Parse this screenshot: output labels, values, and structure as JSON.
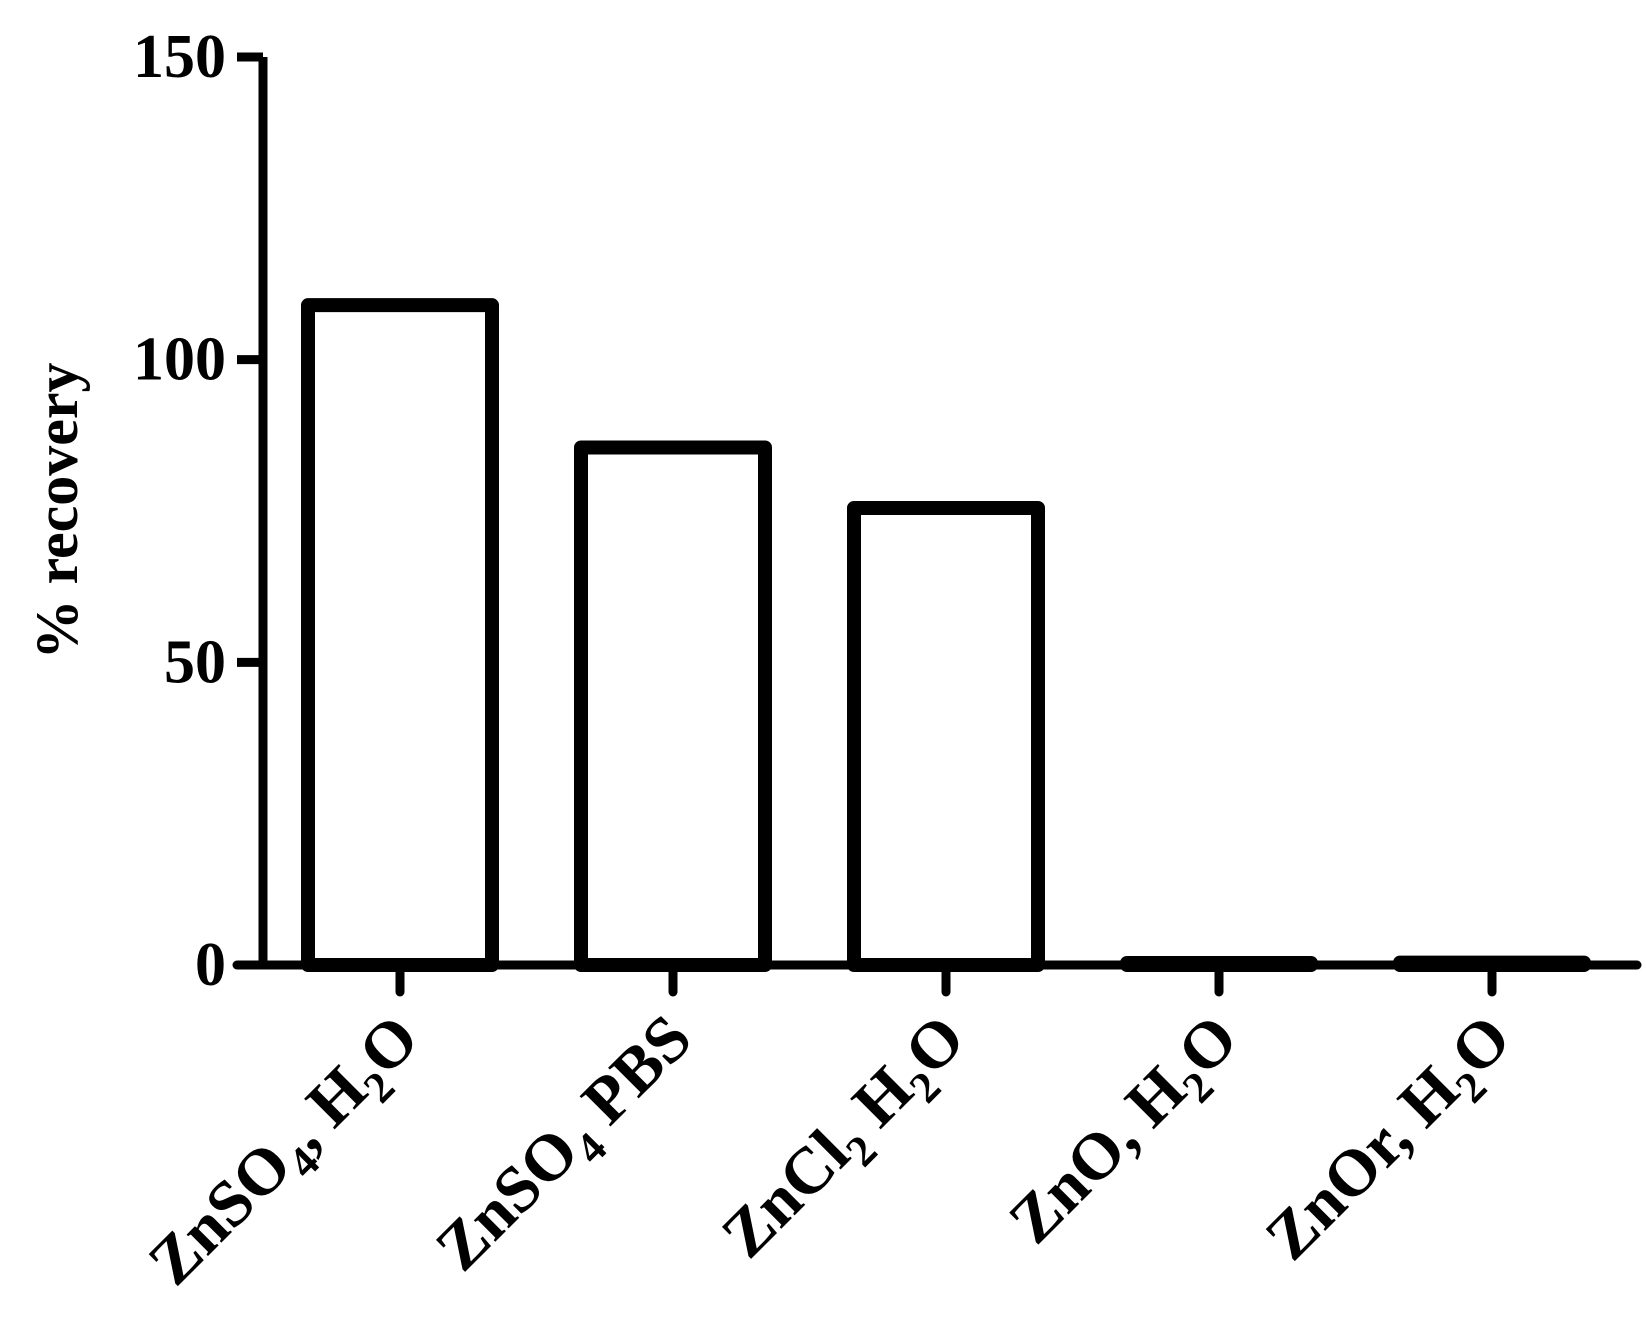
{
  "chart_data": {
    "type": "bar",
    "title": "",
    "xlabel": "",
    "ylabel": "% recovery",
    "ylim": [
      0,
      150
    ],
    "yticks": [
      0,
      50,
      100,
      150
    ],
    "grid": false,
    "legend": "none",
    "bar_fill": "#ffffff",
    "bar_stroke": "#000000",
    "categories": [
      {
        "main": "ZnSO",
        "sub1": "4",
        "rest1": ", H",
        "sub2": "2",
        "rest2": "O"
      },
      {
        "main": "ZnSO",
        "sub1": "4",
        "rest1": " PBS",
        "sub2": "",
        "rest2": ""
      },
      {
        "main": "ZnCl",
        "sub1": "2",
        "rest1": " H",
        "sub2": "2",
        "rest2": "O"
      },
      {
        "main": "ZnO, H",
        "sub1": "2",
        "rest1": "O",
        "sub2": "",
        "rest2": ""
      },
      {
        "main": "ZnOr, H",
        "sub1": "2",
        "rest1": "O",
        "sub2": "",
        "rest2": ""
      }
    ],
    "values": [
      109,
      85.5,
      75.5,
      0.3,
      0.4
    ]
  }
}
